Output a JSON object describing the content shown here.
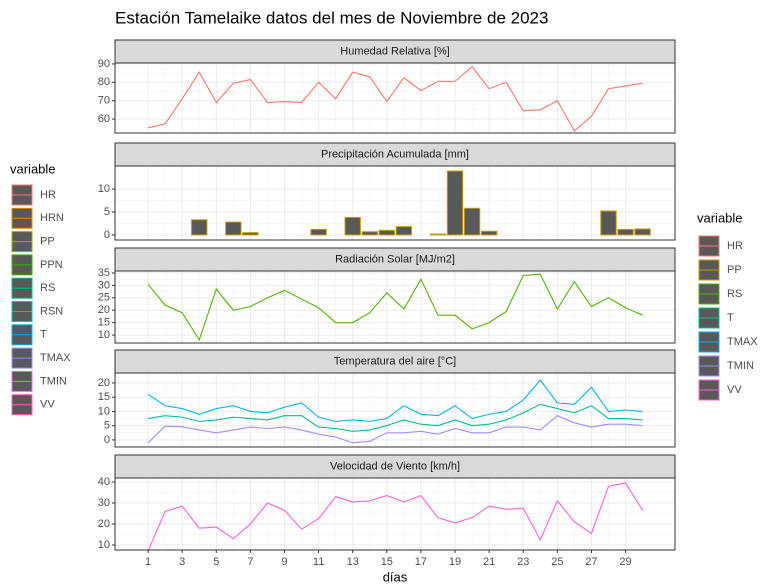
{
  "title": "Estación Tamelaike datos del mes de Noviembre de 2023",
  "legend_left": {
    "title": "variable",
    "entries": [
      {
        "name": "HR",
        "color": "#F8766D"
      },
      {
        "name": "HRN",
        "color": "#D89000"
      },
      {
        "name": "PP",
        "color": "#A3A500"
      },
      {
        "name": "PPN",
        "color": "#39B600"
      },
      {
        "name": "RS",
        "color": "#00BF7D"
      },
      {
        "name": "RSN",
        "color": "#00BFC4"
      },
      {
        "name": "T",
        "color": "#00B0F6"
      },
      {
        "name": "TMAX",
        "color": "#9590FF"
      },
      {
        "name": "TMIN",
        "color": "#E76BF3"
      },
      {
        "name": "VV",
        "color": "#FF62BC"
      }
    ]
  },
  "legend_right_title": "variable",
  "chart_data": [
    {
      "type": "line",
      "title": "Humedad Relativa [%]",
      "x": [
        1,
        2,
        3,
        4,
        5,
        6,
        7,
        8,
        9,
        10,
        11,
        12,
        13,
        14,
        15,
        16,
        17,
        18,
        19,
        20,
        21,
        22,
        23,
        24,
        25,
        26,
        27,
        28,
        29,
        30
      ],
      "series": [
        {
          "name": "HR",
          "color": "#F8766D",
          "values": [
            55.2,
            57.4,
            71,
            85.5,
            69,
            79.5,
            81.5,
            69,
            69.5,
            69,
            80,
            71,
            85.5,
            83,
            69.5,
            82.5,
            75.5,
            80.5,
            80.5,
            88.5,
            76.5,
            80,
            64.5,
            65,
            70,
            53.5,
            61.5,
            76.5,
            78,
            79.5
          ]
        }
      ],
      "ylim": [
        52.4,
        90.5
      ],
      "yticks": [
        60,
        70,
        80,
        90
      ]
    },
    {
      "type": "bar",
      "title": "Precipitación Acumulada [mm]",
      "x": [
        1,
        2,
        3,
        4,
        5,
        6,
        7,
        8,
        9,
        10,
        11,
        12,
        13,
        14,
        15,
        16,
        17,
        18,
        19,
        20,
        21,
        22,
        23,
        24,
        25,
        26,
        27,
        28,
        29,
        30
      ],
      "series": [
        {
          "name": "PP",
          "color": "#C49A00",
          "values": [
            0,
            0,
            0,
            3.3,
            0,
            2.8,
            0.5,
            0,
            0,
            0,
            1.2,
            0,
            3.8,
            0.7,
            1,
            1.8,
            0,
            0.2,
            13.9,
            5.8,
            0.8,
            0,
            0,
            0,
            0,
            0,
            0,
            5.2,
            1.2,
            1.3
          ]
        }
      ],
      "ylim": [
        -1.1,
        15
      ],
      "yticks": [
        0,
        5,
        10
      ]
    },
    {
      "type": "line",
      "title": "Radiación Solar [MJ/m2]",
      "x": [
        1,
        2,
        3,
        4,
        5,
        6,
        7,
        8,
        9,
        10,
        11,
        12,
        13,
        14,
        15,
        16,
        17,
        18,
        19,
        20,
        21,
        22,
        23,
        24,
        25,
        26,
        27,
        28,
        29,
        30
      ],
      "series": [
        {
          "name": "RS",
          "color": "#53B400",
          "values": [
            30.5,
            22,
            19,
            8,
            28.5,
            20,
            21.5,
            25,
            28,
            24.5,
            21,
            15,
            15,
            19,
            27,
            20.5,
            32.5,
            18,
            18,
            12.5,
            15,
            19.5,
            34,
            34.5,
            20.5,
            31.5,
            21.5,
            25,
            21,
            18
          ]
        }
      ],
      "ylim": [
        6.8,
        35.8
      ],
      "yticks": [
        10,
        15,
        20,
        25,
        30,
        35
      ]
    },
    {
      "type": "line",
      "title": "Temperatura del aire [°C]",
      "x": [
        1,
        2,
        3,
        4,
        5,
        6,
        7,
        8,
        9,
        10,
        11,
        12,
        13,
        14,
        15,
        16,
        17,
        18,
        19,
        20,
        21,
        22,
        23,
        24,
        25,
        26,
        27,
        28,
        29,
        30
      ],
      "series": [
        {
          "name": "T",
          "color": "#00C094",
          "values": [
            7.5,
            8.5,
            8,
            6.5,
            7,
            8,
            7.5,
            7,
            8.5,
            8.5,
            4.5,
            4,
            3,
            3.5,
            5,
            7,
            5.5,
            5,
            7,
            5,
            5.5,
            7,
            9.5,
            12.5,
            11,
            9.5,
            12,
            7.5,
            7.5,
            7
          ]
        },
        {
          "name": "TMAX",
          "color": "#00B6EB",
          "values": [
            16,
            12,
            11,
            9,
            11,
            12,
            10,
            9.5,
            11.5,
            13,
            8,
            6.5,
            7,
            6.5,
            7.5,
            12,
            9,
            8.5,
            12,
            7.5,
            9,
            10,
            14,
            21,
            13,
            12.5,
            18.5,
            10,
            10.5,
            10
          ]
        },
        {
          "name": "TMIN",
          "color": "#A58AFF",
          "values": [
            -1,
            4.8,
            4.6,
            3.5,
            2.5,
            3.5,
            4.5,
            4,
            4.5,
            3.5,
            2,
            1,
            -1,
            -0.5,
            2.5,
            2.5,
            3,
            2,
            4,
            2.5,
            2.5,
            4.5,
            4.5,
            3.5,
            8.5,
            6,
            4.5,
            5.5,
            5.5,
            5
          ]
        }
      ],
      "ylim": [
        -2.5,
        23.5
      ],
      "yticks": [
        0,
        5,
        10,
        15,
        20
      ]
    },
    {
      "type": "line",
      "title": "Velocidad de Viento [km/h]",
      "x": [
        1,
        2,
        3,
        4,
        5,
        6,
        7,
        8,
        9,
        10,
        11,
        12,
        13,
        14,
        15,
        16,
        17,
        18,
        19,
        20,
        21,
        22,
        23,
        24,
        25,
        26,
        27,
        28,
        29,
        30
      ],
      "series": [
        {
          "name": "VV",
          "color": "#FB61D7",
          "values": [
            7,
            26,
            28.5,
            18,
            18.5,
            13,
            20,
            30,
            26.5,
            17.5,
            22.5,
            33,
            30.5,
            31,
            33.5,
            30.5,
            33.5,
            23,
            20.5,
            23,
            28.5,
            27,
            27.5,
            12.5,
            31,
            21,
            15.5,
            38,
            39.5,
            26.5
          ]
        }
      ],
      "ylim": [
        7.6,
        41.9
      ],
      "yticks": [
        10,
        20,
        30,
        40
      ],
      "xlabel": "días",
      "xlim": [
        -0.94,
        31.9
      ],
      "xticks": [
        1,
        3,
        5,
        7,
        9,
        11,
        13,
        15,
        17,
        19,
        21,
        23,
        25,
        27,
        29
      ]
    }
  ]
}
